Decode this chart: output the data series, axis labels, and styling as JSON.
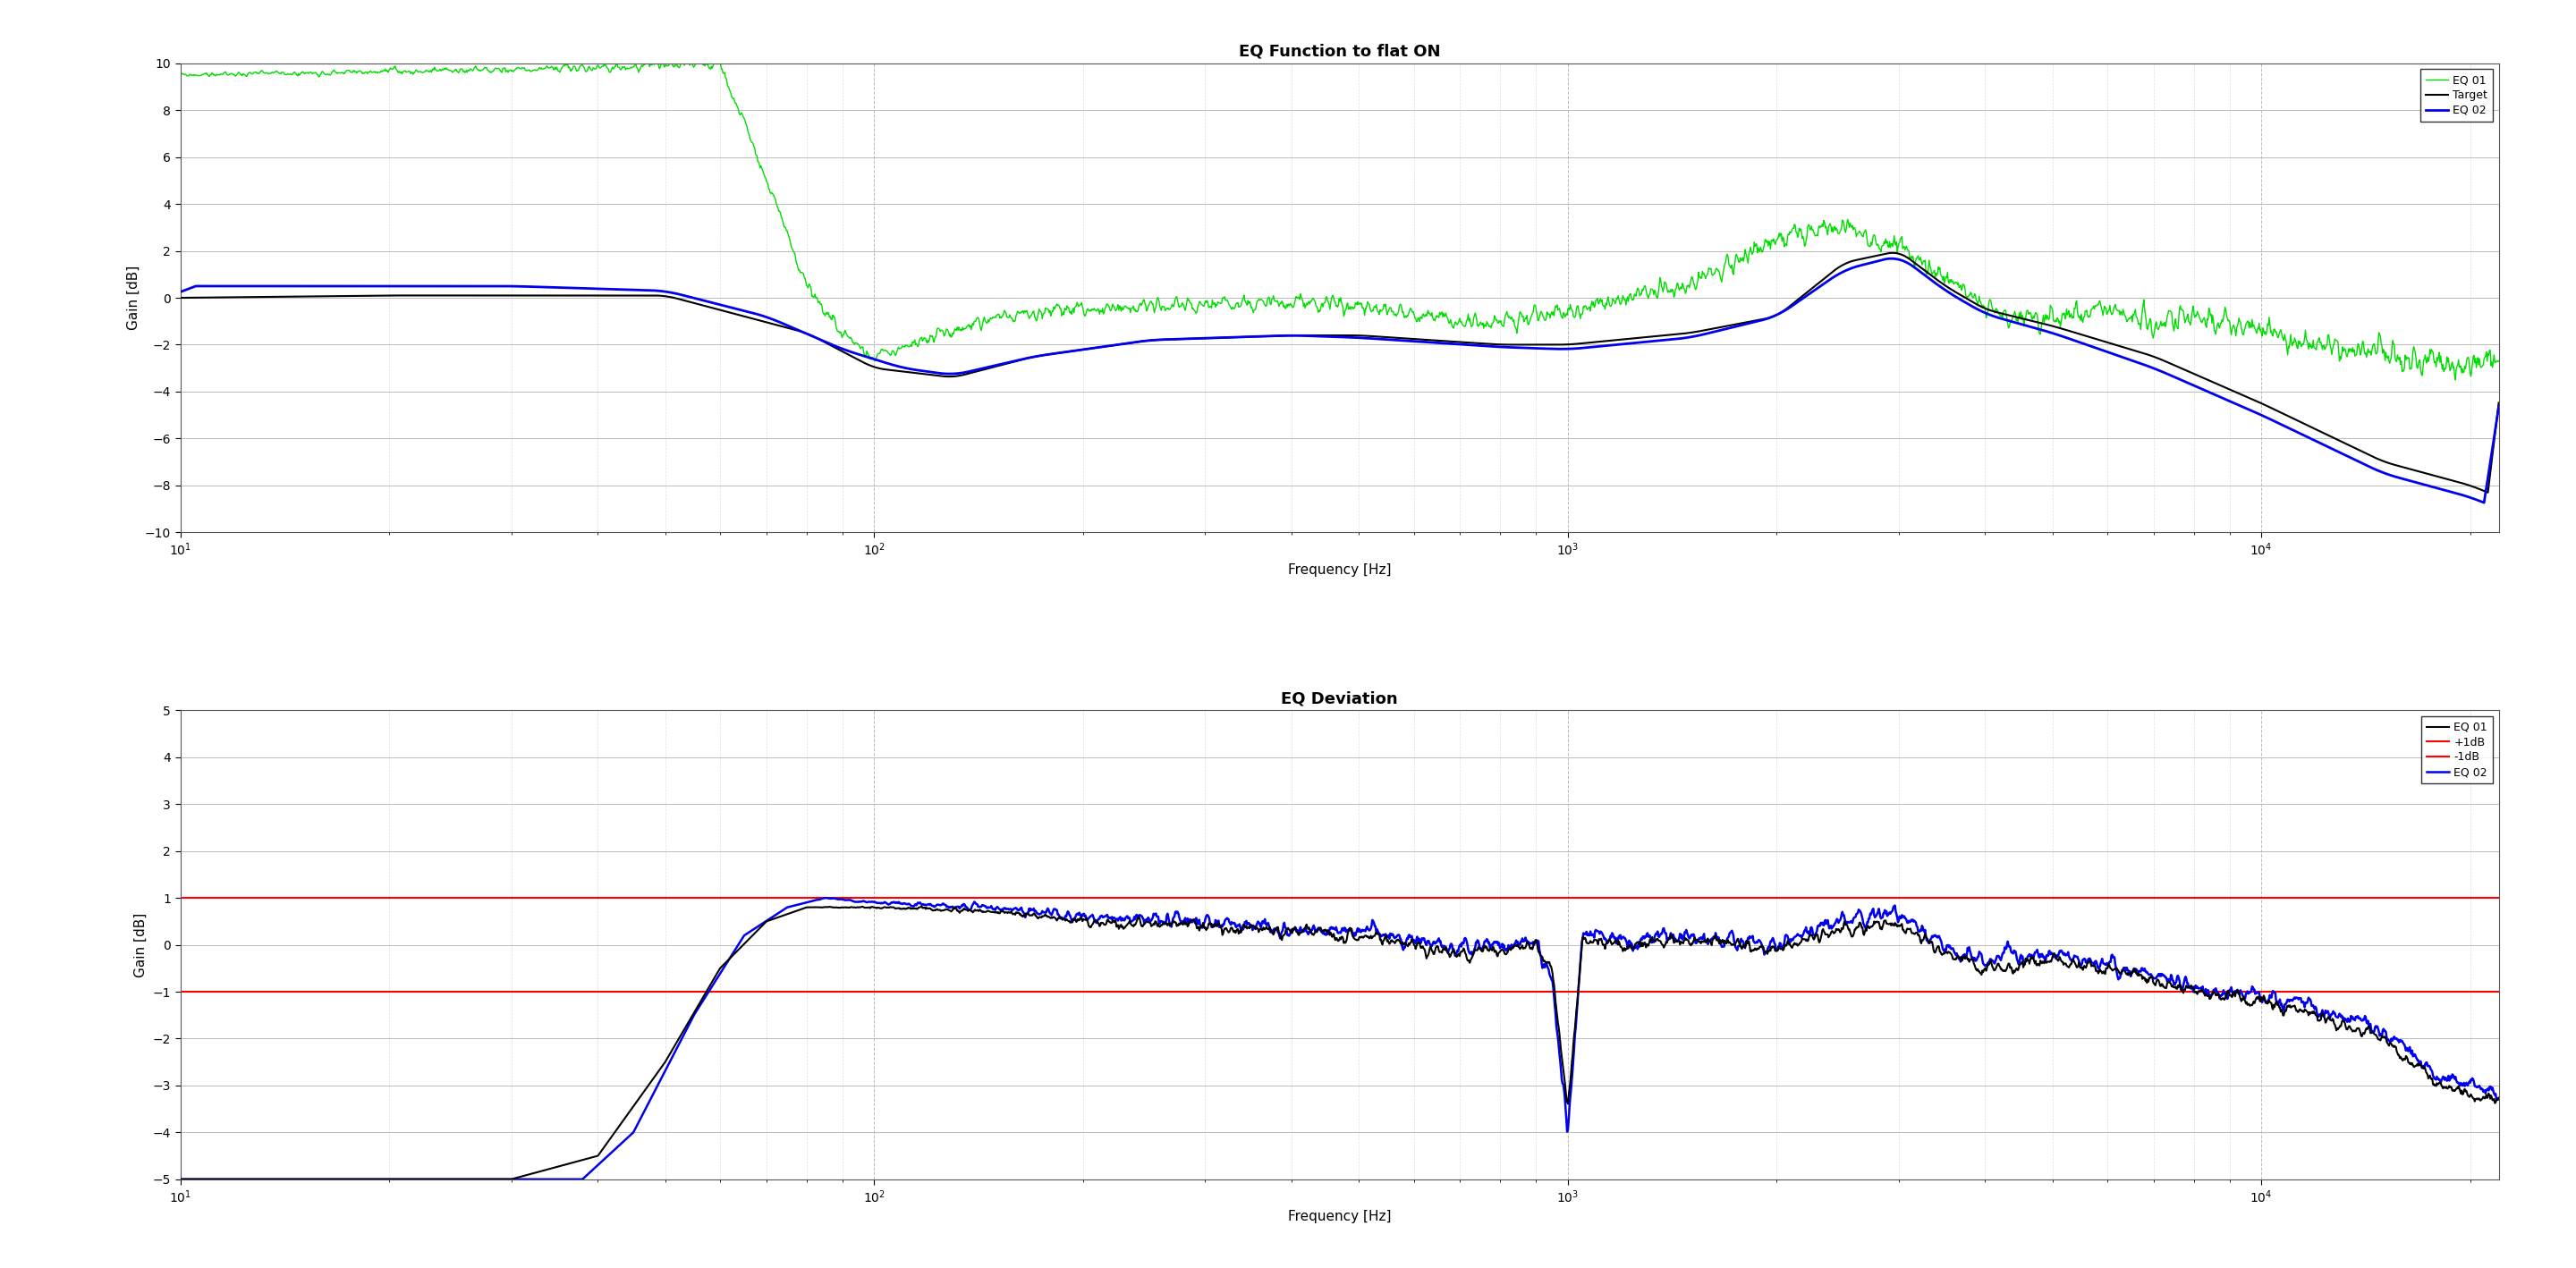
{
  "title1": "EQ Function to flat ON",
  "title2": "EQ Deviation",
  "xlabel": "Frequency [Hz]",
  "ylabel": "Gain [dB]",
  "ylim1": [
    -10,
    10
  ],
  "ylim2": [
    -5,
    5
  ],
  "xlim": [
    10,
    22000
  ],
  "yticks1": [
    -10,
    -8,
    -6,
    -4,
    -2,
    0,
    2,
    4,
    6,
    8,
    10
  ],
  "yticks2": [
    -5,
    -4,
    -3,
    -2,
    -1,
    0,
    1,
    2,
    3,
    4,
    5
  ],
  "line_colors": {
    "eq01": "#000000",
    "target": "#00dd00",
    "eq02": "#0000ee"
  },
  "red_line_color": "#ff0000",
  "legend1": [
    "EQ 01",
    "Target",
    "EQ 02"
  ],
  "legend2": [
    "EQ 01",
    "+1dB",
    "-1dB",
    "EQ 02"
  ],
  "plus1db": 1.0,
  "minus1db": -1.0,
  "background": "#ffffff",
  "grid_major_color": "#bbbbbb",
  "grid_minor_color": "#dddddd",
  "title_fontsize": 13,
  "label_fontsize": 11,
  "tick_fontsize": 10
}
